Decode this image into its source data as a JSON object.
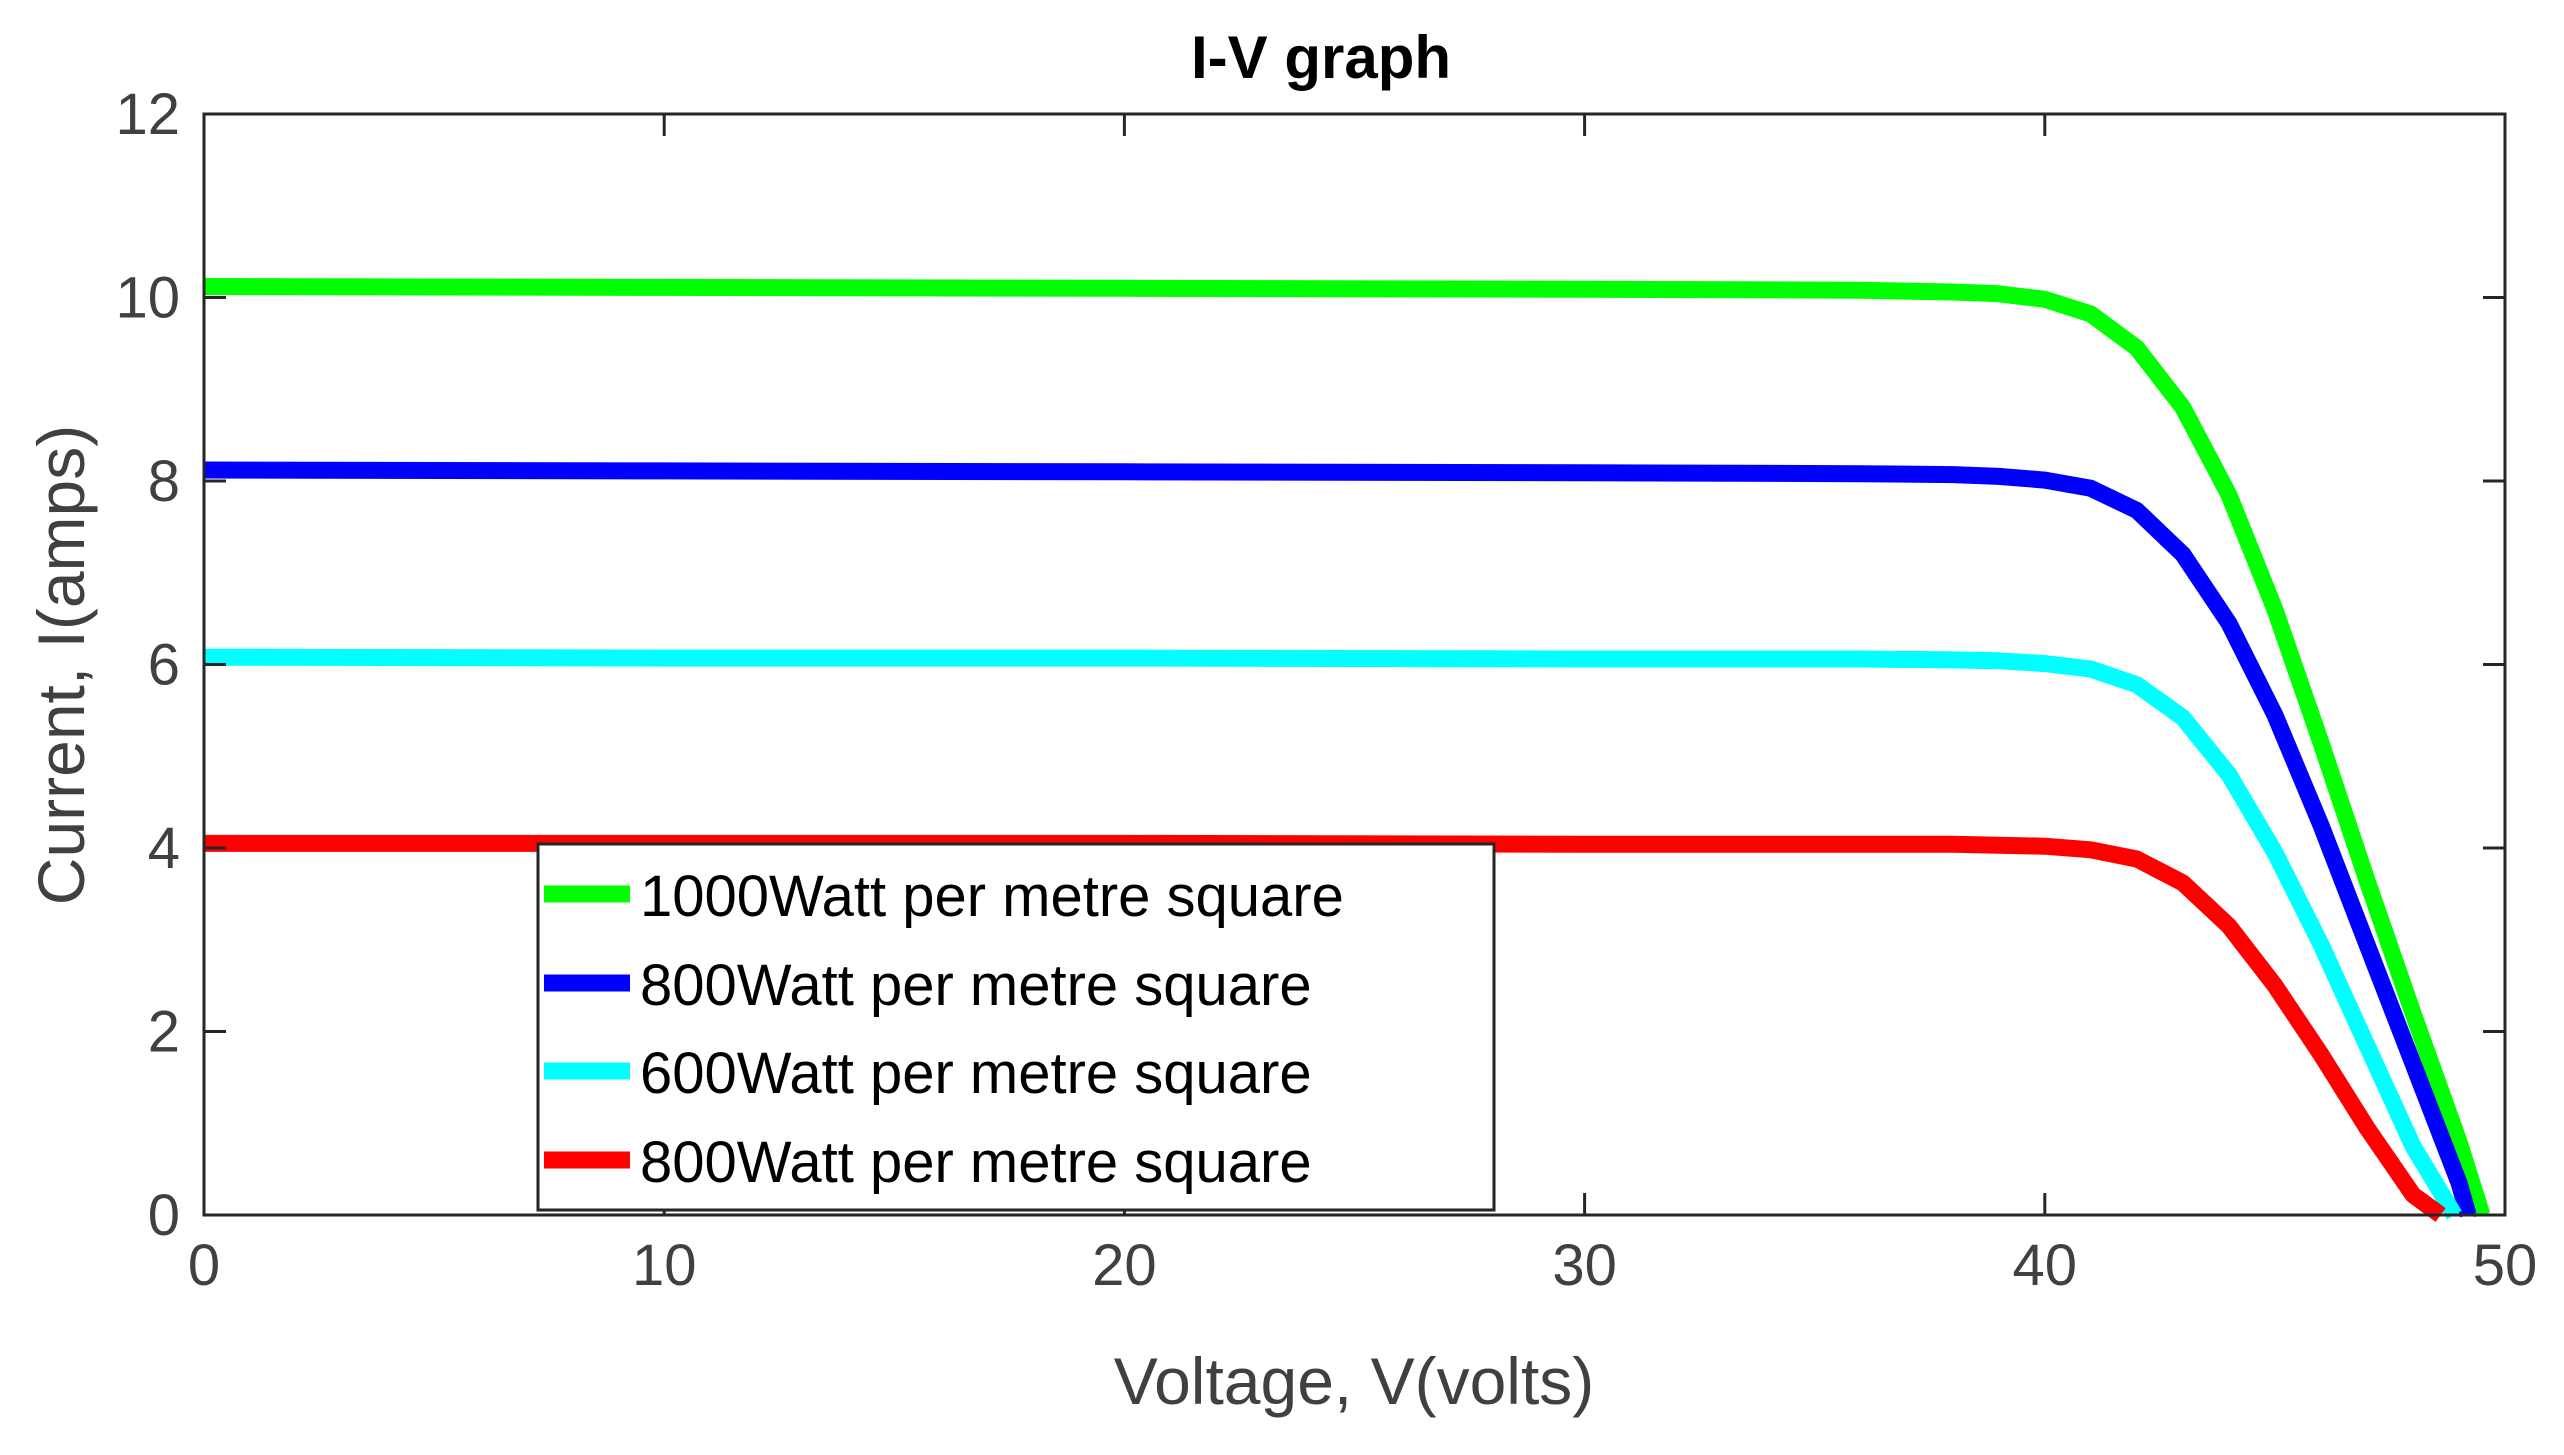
{
  "chart_data": {
    "type": "line",
    "title": "I-V graph",
    "xlabel": "Voltage, V(volts)",
    "ylabel": "Current, I(amps)",
    "xlim": [
      0,
      50
    ],
    "ylim": [
      0,
      12
    ],
    "xticks": [
      0,
      10,
      20,
      30,
      40,
      50
    ],
    "yticks": [
      0,
      2,
      4,
      6,
      8,
      10,
      12
    ],
    "grid": false,
    "legend_position": "bottom-left",
    "series": [
      {
        "name": "1000Watt per metre square",
        "color": "#00ff00",
        "x": [
          0,
          10,
          20,
          30,
          36,
          38,
          39,
          40,
          41,
          42,
          43,
          44,
          45,
          46,
          47,
          48,
          49,
          49.5
        ],
        "y": [
          10.12,
          10.11,
          10.1,
          10.09,
          10.08,
          10.06,
          10.04,
          9.98,
          9.82,
          9.45,
          8.8,
          7.85,
          6.6,
          5.15,
          3.65,
          2.2,
          0.8,
          0
        ]
      },
      {
        "name": "800Watt per metre square",
        "color": "#0000ff",
        "x": [
          0,
          10,
          20,
          30,
          36,
          38,
          39,
          40,
          41,
          42,
          43,
          44,
          45,
          46,
          47,
          48,
          49,
          49.2
        ],
        "y": [
          8.12,
          8.11,
          8.1,
          8.09,
          8.08,
          8.07,
          8.05,
          8.01,
          7.92,
          7.68,
          7.2,
          6.45,
          5.45,
          4.25,
          2.95,
          1.65,
          0.35,
          0
        ]
      },
      {
        "name": "600Watt per metre square",
        "color": "#00ffff",
        "x": [
          0,
          10,
          20,
          30,
          36,
          38,
          39,
          40,
          41,
          42,
          43,
          44,
          45,
          46,
          47,
          48,
          48.9
        ],
        "y": [
          6.08,
          6.07,
          6.07,
          6.06,
          6.06,
          6.05,
          6.04,
          6.01,
          5.95,
          5.78,
          5.42,
          4.8,
          3.95,
          2.95,
          1.85,
          0.75,
          0
        ]
      },
      {
        "name": "800Watt per metre square",
        "color": "#ff0000",
        "x": [
          0,
          10,
          20,
          30,
          36,
          38,
          39,
          40,
          41,
          42,
          43,
          44,
          45,
          46,
          47,
          48,
          48.6
        ],
        "y": [
          4.05,
          4.05,
          4.05,
          4.04,
          4.04,
          4.04,
          4.03,
          4.02,
          3.98,
          3.88,
          3.62,
          3.15,
          2.5,
          1.75,
          0.95,
          0.22,
          0
        ]
      }
    ]
  }
}
